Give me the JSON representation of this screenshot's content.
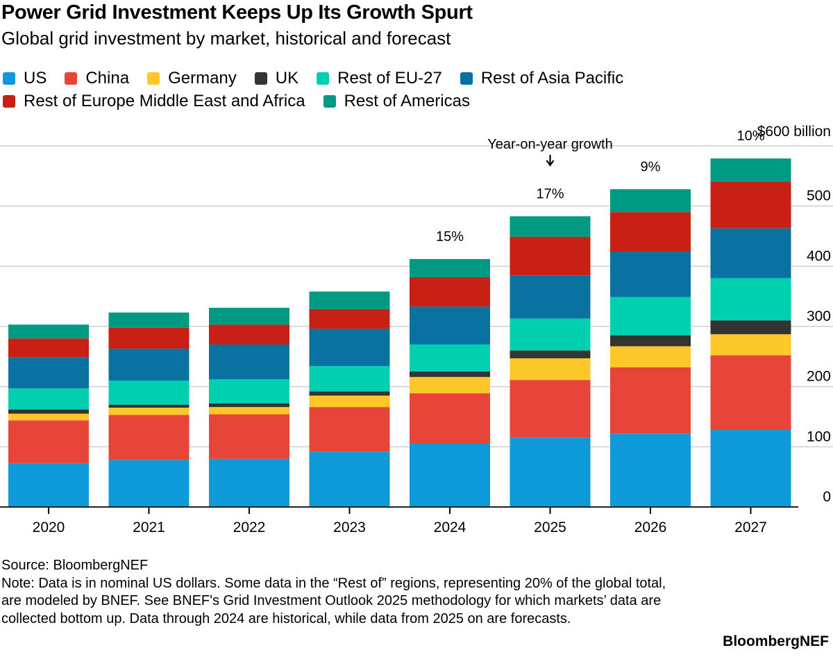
{
  "title": "Power Grid Investment Keeps Up Its Growth Spurt",
  "subtitle": "Global grid investment by market, historical and forecast",
  "chart_data": {
    "type": "bar",
    "stacked": true,
    "title": "Power Grid Investment Keeps Up Its Growth Spurt",
    "subtitle": "Global grid investment by market, historical and forecast",
    "categories": [
      "2020",
      "2021",
      "2022",
      "2023",
      "2024",
      "2025",
      "2026",
      "2027"
    ],
    "series": [
      {
        "name": "US",
        "color": "#0e9ad9",
        "values": [
          73,
          78,
          80,
          92,
          105,
          115,
          122,
          128
        ]
      },
      {
        "name": "China",
        "color": "#e8453a",
        "values": [
          71,
          75,
          74,
          74,
          84,
          96,
          110,
          124
        ]
      },
      {
        "name": "Germany",
        "color": "#fdc82a",
        "values": [
          11,
          12,
          12,
          19,
          27,
          36,
          35,
          35
        ]
      },
      {
        "name": "UK",
        "color": "#333333",
        "values": [
          7,
          5,
          6,
          7,
          9,
          13,
          18,
          23
        ]
      },
      {
        "name": "Rest of EU-27",
        "color": "#00d0b0",
        "values": [
          35,
          40,
          40,
          42,
          45,
          53,
          64,
          70
        ]
      },
      {
        "name": "Rest of Asia Pacific",
        "color": "#0a72a0",
        "values": [
          52,
          53,
          58,
          62,
          63,
          72,
          75,
          83
        ]
      },
      {
        "name": "Rest of Europe Middle East and Africa",
        "color": "#c92015",
        "values": [
          31,
          35,
          33,
          33,
          49,
          64,
          66,
          77
        ]
      },
      {
        "name": "Rest of Americas",
        "color": "#009a82",
        "values": [
          23,
          25,
          28,
          29,
          30,
          34,
          38,
          39
        ]
      }
    ],
    "ylim": [
      0,
      600
    ],
    "yticks": [
      "0",
      "100",
      "200",
      "300",
      "400",
      "500",
      "$600 billion"
    ],
    "grid": true,
    "legend": "top",
    "annotations": {
      "growth_label": "Year-on-year growth",
      "growth": [
        {
          "category": "2024",
          "label": "15%"
        },
        {
          "category": "2025",
          "label": "17%"
        },
        {
          "category": "2026",
          "label": "9%"
        },
        {
          "category": "2027",
          "label": "10%"
        }
      ]
    }
  },
  "footer": {
    "source": "Source: BloombergNEF",
    "note": "Note: Data is in nominal US dollars. Some data in the “Rest of” regions, representing 20% of the global total, are modeled by BNEF. See BNEF's Grid Investment Outlook 2025 methodology for which markets’ data are collected bottom up. Data through 2024 are historical, while data from 2025 on are forecasts.",
    "brand": "BloombergNEF"
  }
}
